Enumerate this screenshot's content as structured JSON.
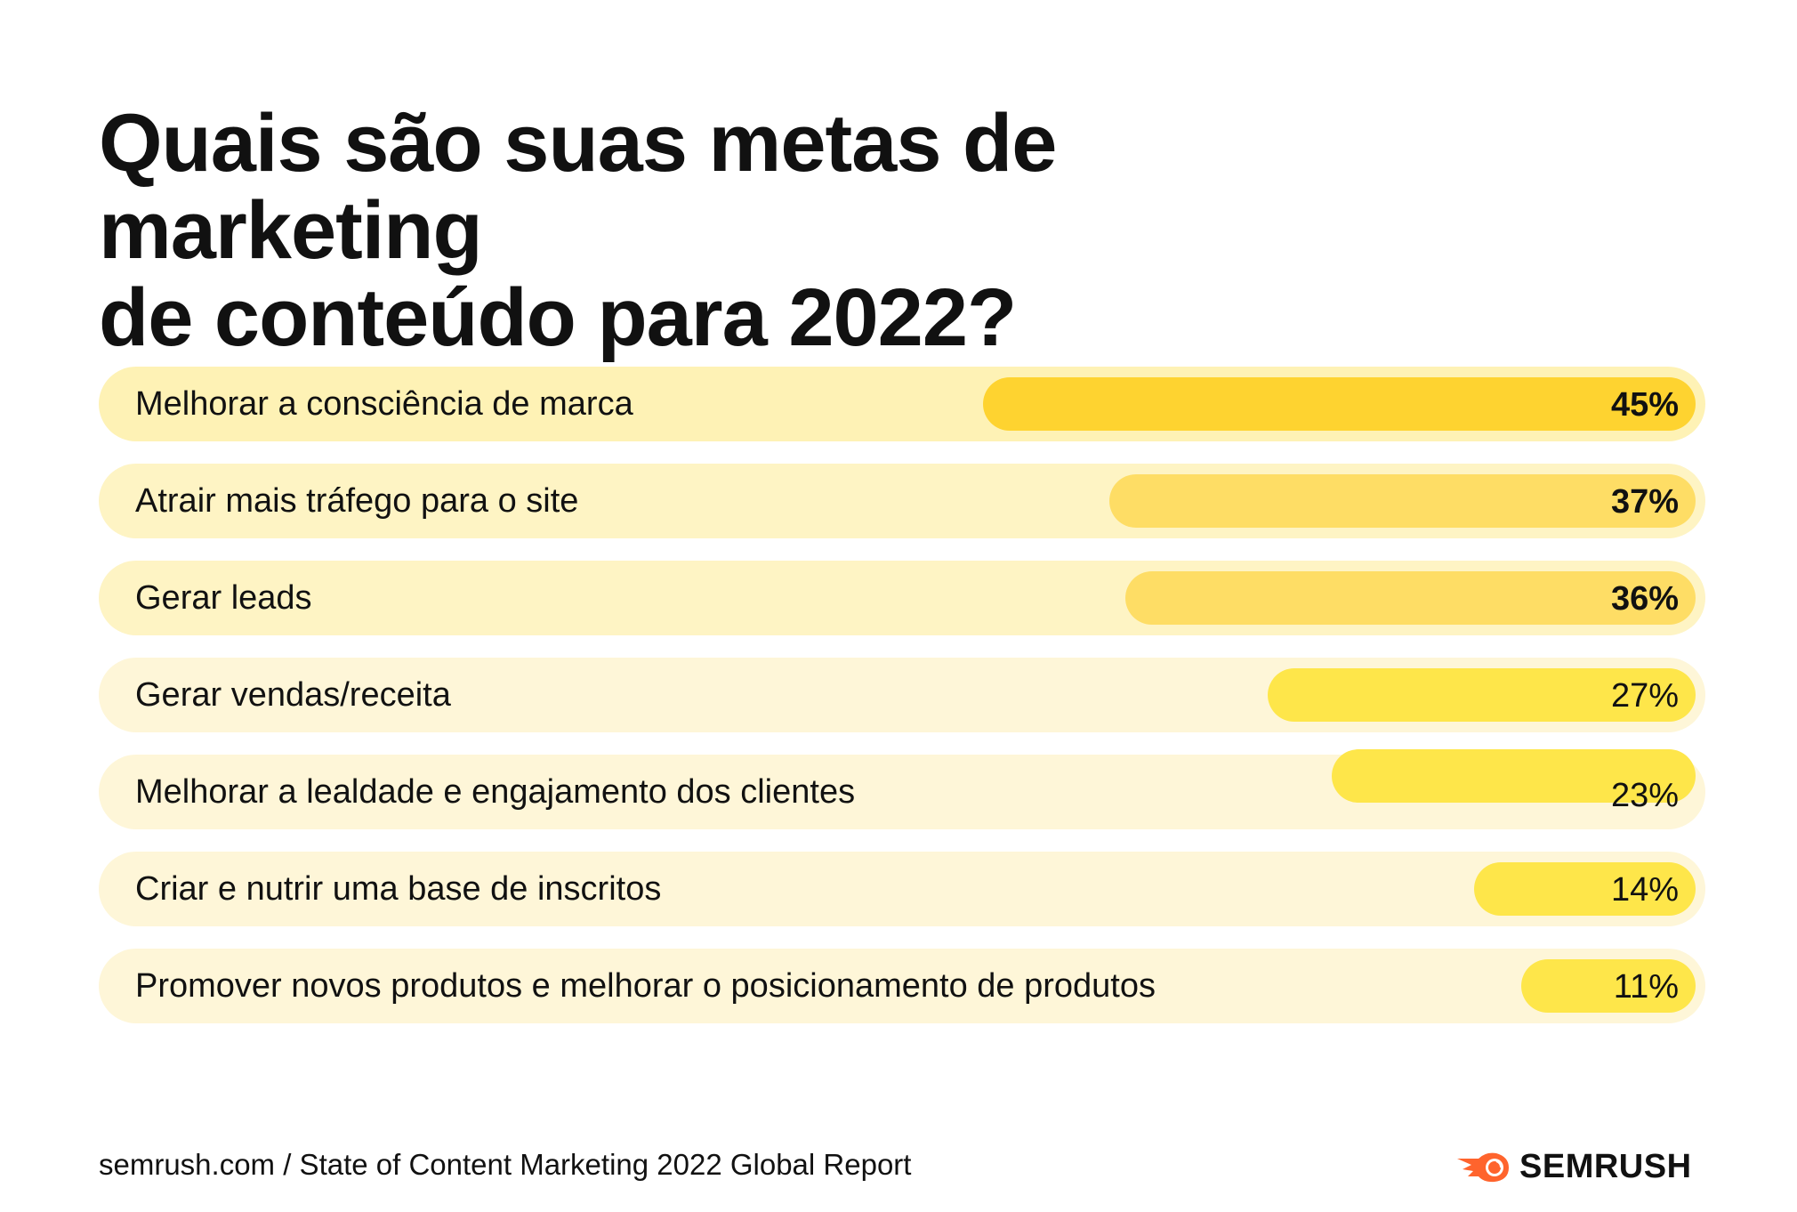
{
  "title": "Quais são suas metas de marketing de conteúdo para 2022?",
  "title_lines": [
    "Quais são suas metas de marketing",
    "de conteúdo para 2022?"
  ],
  "chart_data": {
    "type": "bar",
    "orientation": "horizontal",
    "title": "Quais são suas metas de marketing de conteúdo para 2022?",
    "categories": [
      "Melhorar a consciência de marca",
      "Atrair mais tráfego para o site",
      "Gerar leads",
      "Gerar vendas/receita",
      "Melhorar a lealdade e engajamento dos clientes",
      "Criar e nutrir uma base de inscritos",
      "Promover novos produtos e melhorar o posicionamento de produtos"
    ],
    "values": [
      45,
      37,
      36,
      27,
      23,
      14,
      11
    ],
    "value_labels": [
      "45%",
      "37%",
      "36%",
      "27%",
      "23%",
      "14%",
      "11%"
    ],
    "unit": "%",
    "colors": {
      "bars": [
        "#fed330",
        "#fedd65",
        "#fedd65",
        "#fee64a",
        "#fee64a",
        "#fee64a",
        "#fee64a"
      ],
      "tracks": [
        "#fef2b5",
        "#fef4c4",
        "#fef4c4",
        "#fef6d8",
        "#fef6d8",
        "#fef6d8",
        "#fef6d8"
      ]
    },
    "bold_values": [
      true,
      true,
      true,
      false,
      false,
      false,
      false
    ],
    "grid": false,
    "legend": "none"
  },
  "footer": {
    "source": "semrush.com / State of Content Marketing 2022 Global Report"
  },
  "logo": {
    "text": "SEMRUSH",
    "icon": "semrush-fireball-icon",
    "color": "#ff642d"
  }
}
